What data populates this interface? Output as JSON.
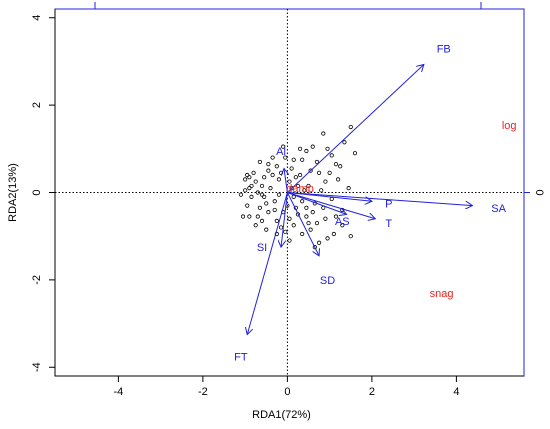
{
  "chart_data": {
    "type": "scatter",
    "title": "",
    "xlabel": "RDA1(72%)",
    "ylabel": "RDA2(13%)",
    "xlim": [
      -5.5,
      5.6
    ],
    "ylim": [
      -4.2,
      4.2
    ],
    "x_ticks": [
      -4,
      -2,
      0,
      2,
      4
    ],
    "y_ticks": [
      -4,
      -2,
      0,
      2,
      4
    ],
    "x_tick_labels": [
      "-4",
      "-2",
      "0",
      "2",
      "4"
    ],
    "y_tick_labels": [
      "-4",
      "-2",
      "0",
      "2",
      "4"
    ],
    "right_axis_tick_labels": [
      "0"
    ],
    "grid": false,
    "reference_lines": {
      "x": 0,
      "y": 0,
      "style": "dotted"
    },
    "vector_color": "#2222dd",
    "category_color": "#ee2222",
    "point_color": "#000000",
    "vectors": [
      {
        "label": "FB",
        "x": 3.23,
        "y": 2.93,
        "lx": 3.7,
        "ly": 3.3
      },
      {
        "label": "SA",
        "x": 4.38,
        "y": -0.3,
        "lx": 5.0,
        "ly": -0.35
      },
      {
        "label": "P",
        "x": 2.0,
        "y": -0.2,
        "lx": 2.4,
        "ly": -0.25
      },
      {
        "label": "T",
        "x": 2.08,
        "y": -0.6,
        "lx": 2.4,
        "ly": -0.7
      },
      {
        "label": "AS",
        "x": 1.4,
        "y": -0.5,
        "lx": 1.3,
        "ly": -0.65
      },
      {
        "label": "SD",
        "x": 0.75,
        "y": -1.45,
        "lx": 0.95,
        "ly": -2.0
      },
      {
        "label": "SI",
        "x": -0.15,
        "y": -1.25,
        "lx": -0.6,
        "ly": -1.25
      },
      {
        "label": "FT",
        "x": -0.95,
        "y": -3.25,
        "lx": -1.1,
        "ly": -3.75
      },
      {
        "label": "Al",
        "x": -0.08,
        "y": 0.55,
        "lx": -0.15,
        "ly": 0.95
      }
    ],
    "categories": [
      {
        "label": "log",
        "x": 5.25,
        "y": 1.55
      },
      {
        "label": "damp",
        "x": 0.3,
        "y": 0.1
      },
      {
        "label": "snag",
        "x": 3.65,
        "y": -2.3
      }
    ],
    "points": [
      [
        -0.9,
        0.35
      ],
      [
        -1.0,
        0.05
      ],
      [
        -0.95,
        -0.3
      ],
      [
        -0.6,
        0.15
      ],
      [
        -0.8,
        0.45
      ],
      [
        -0.55,
        -0.1
      ],
      [
        -0.45,
        0.5
      ],
      [
        -0.3,
        -0.2
      ],
      [
        -0.2,
        0.3
      ],
      [
        -0.1,
        -0.45
      ],
      [
        0.05,
        0.25
      ],
      [
        0.15,
        -0.1
      ],
      [
        0.3,
        0.4
      ],
      [
        0.2,
        -0.35
      ],
      [
        0.45,
        -0.55
      ],
      [
        0.5,
        0.15
      ],
      [
        0.65,
        -0.25
      ],
      [
        0.8,
        0.05
      ],
      [
        0.7,
        0.7
      ],
      [
        0.9,
        -0.6
      ],
      [
        1.05,
        -0.15
      ],
      [
        1.2,
        0.3
      ],
      [
        1.1,
        -0.95
      ],
      [
        1.3,
        -0.4
      ],
      [
        1.45,
        0.1
      ],
      [
        0.95,
        1.0
      ],
      [
        1.15,
        0.65
      ],
      [
        0.6,
        1.05
      ],
      [
        0.35,
        0.75
      ],
      [
        -0.05,
        0.8
      ],
      [
        -0.35,
        0.8
      ],
      [
        -0.65,
        0.7
      ],
      [
        -0.9,
        -0.55
      ],
      [
        -0.75,
        -0.75
      ],
      [
        -0.5,
        -0.85
      ],
      [
        -0.25,
        -0.65
      ],
      [
        -0.05,
        -0.9
      ],
      [
        0.15,
        -0.75
      ],
      [
        0.35,
        -0.95
      ],
      [
        0.55,
        -0.85
      ],
      [
        0.75,
        -1.15
      ],
      [
        0.95,
        -1.05
      ],
      [
        1.3,
        -0.75
      ],
      [
        1.5,
        -1.0
      ],
      [
        1.35,
        1.15
      ],
      [
        1.5,
        1.5
      ],
      [
        1.6,
        0.9
      ],
      [
        0.85,
        1.35
      ],
      [
        0.3,
        1.0
      ],
      [
        -0.1,
        1.05
      ],
      [
        -0.45,
        -0.45
      ],
      [
        -0.2,
        -0.05
      ],
      [
        0.1,
        0.55
      ],
      [
        0.4,
        0.05
      ],
      [
        0.25,
        -0.5
      ],
      [
        -0.65,
        -0.35
      ],
      [
        -0.85,
        0.15
      ],
      [
        -0.4,
        0.1
      ],
      [
        0.6,
        -0.45
      ],
      [
        0.85,
        -0.35
      ],
      [
        1.0,
        0.45
      ],
      [
        0.55,
        0.5
      ],
      [
        -0.15,
        0.45
      ],
      [
        -0.55,
        0.35
      ],
      [
        -1.1,
        -0.05
      ],
      [
        -1.05,
        -0.55
      ],
      [
        -0.7,
        -0.55
      ],
      [
        0.0,
        -0.3
      ],
      [
        0.35,
        -0.2
      ],
      [
        0.7,
        -0.7
      ],
      [
        1.15,
        -0.55
      ],
      [
        1.25,
        0.6
      ],
      [
        0.45,
        0.95
      ],
      [
        -0.25,
        0.6
      ],
      [
        -0.5,
        -0.25
      ],
      [
        -0.75,
        0.25
      ],
      [
        0.05,
        -0.6
      ],
      [
        0.25,
        0.15
      ],
      [
        -1.0,
        0.3
      ],
      [
        -0.95,
        0.4
      ],
      [
        -0.9,
        0.1
      ],
      [
        -0.85,
        -0.1
      ],
      [
        -0.7,
        0.0
      ],
      [
        -0.6,
        -0.05
      ],
      [
        -0.35,
        0.4
      ],
      [
        0.1,
        0.1
      ],
      [
        0.2,
        0.35
      ],
      [
        0.45,
        -0.35
      ],
      [
        0.5,
        -0.7
      ],
      [
        0.65,
        -1.25
      ],
      [
        -0.3,
        -0.4
      ],
      [
        -0.15,
        -0.8
      ],
      [
        0.9,
        0.25
      ],
      [
        1.05,
        0.85
      ],
      [
        0.75,
        0.45
      ],
      [
        -0.45,
        0.65
      ],
      [
        -0.25,
        -0.95
      ],
      [
        0.05,
        -1.1
      ],
      [
        -0.6,
        -0.65
      ],
      [
        0.15,
        0.75
      ]
    ]
  }
}
